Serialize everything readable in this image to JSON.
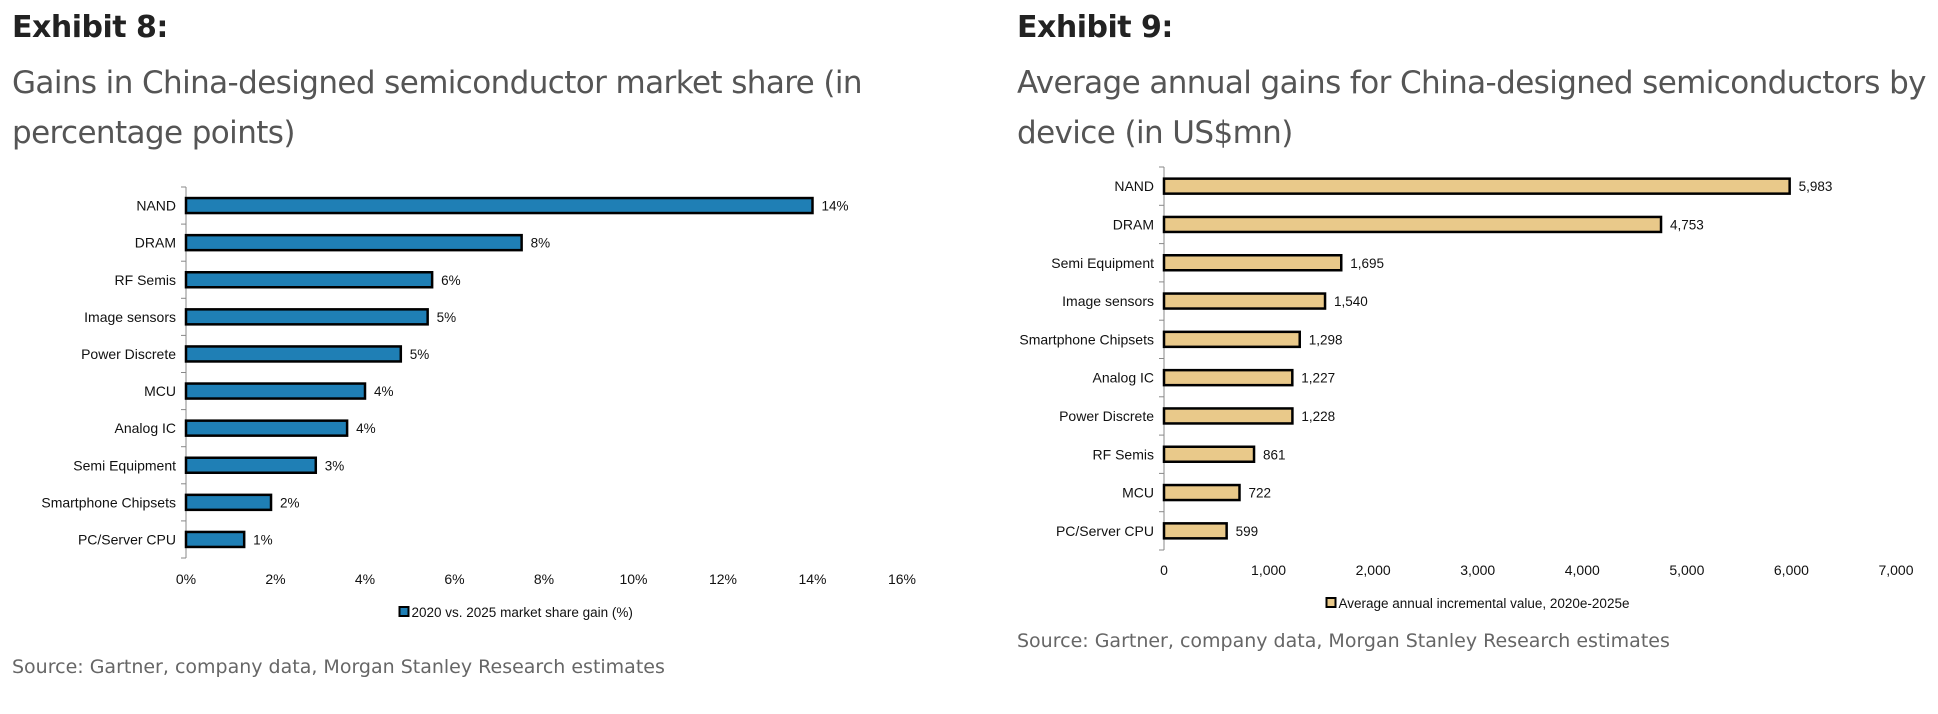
{
  "left": {
    "exhibit": "Exhibit 8:",
    "subtitle": "Gains in China-designed semiconductor market share (in percentage points)",
    "source": "Source: Gartner, company data, Morgan Stanley Research estimates",
    "colors": {
      "bar": "#1F7FB5",
      "outline": "#000000"
    },
    "chart_data": {
      "type": "bar",
      "orientation": "horizontal",
      "categories": [
        "NAND",
        "DRAM",
        "RF Semis",
        "Image sensors",
        "Power Discrete",
        "MCU",
        "Analog IC",
        "Semi Equipment",
        "Smartphone Chipsets",
        "PC/Server CPU"
      ],
      "values": [
        14.0,
        7.5,
        5.5,
        5.4,
        4.8,
        4.0,
        3.6,
        2.9,
        1.9,
        1.3
      ],
      "data_labels": [
        "14%",
        "8%",
        "6%",
        "5%",
        "5%",
        "4%",
        "4%",
        "3%",
        "2%",
        "1%"
      ],
      "xlim": [
        0,
        16
      ],
      "x_ticks": [
        0,
        2,
        4,
        6,
        8,
        10,
        12,
        14,
        16
      ],
      "x_tick_labels": [
        "0%",
        "2%",
        "4%",
        "6%",
        "8%",
        "10%",
        "12%",
        "14%",
        "16%"
      ],
      "legend": "2020 vs. 2025 market share gain (%)",
      "legend_position": "bottom",
      "grid": false
    }
  },
  "right": {
    "exhibit": "Exhibit 9:",
    "subtitle": "Average annual gains for China-designed semiconductors by device (in US$mn)",
    "source": "Source: Gartner, company data, Morgan Stanley Research estimates",
    "colors": {
      "bar": "#E9C98A",
      "outline": "#000000"
    },
    "chart_data": {
      "type": "bar",
      "orientation": "horizontal",
      "categories": [
        "NAND",
        "DRAM",
        "Semi Equipment",
        "Image sensors",
        "Smartphone Chipsets",
        "Analog IC",
        "Power Discrete",
        "RF Semis",
        "MCU",
        "PC/Server CPU"
      ],
      "values": [
        5983,
        4753,
        1695,
        1540,
        1298,
        1227,
        1228,
        861,
        722,
        599
      ],
      "data_labels": [
        "5,983",
        "4,753",
        "1,695",
        "1,540",
        "1,298",
        "1,227",
        "1,228",
        "861",
        "722",
        "599"
      ],
      "xlim": [
        0,
        7000
      ],
      "x_ticks": [
        0,
        1000,
        2000,
        3000,
        4000,
        5000,
        6000,
        7000
      ],
      "x_tick_labels": [
        "0",
        "1,000",
        "2,000",
        "3,000",
        "4,000",
        "5,000",
        "6,000",
        "7,000"
      ],
      "legend": "Average annual incremental value, 2020e-2025e",
      "legend_position": "bottom",
      "grid": false
    }
  }
}
